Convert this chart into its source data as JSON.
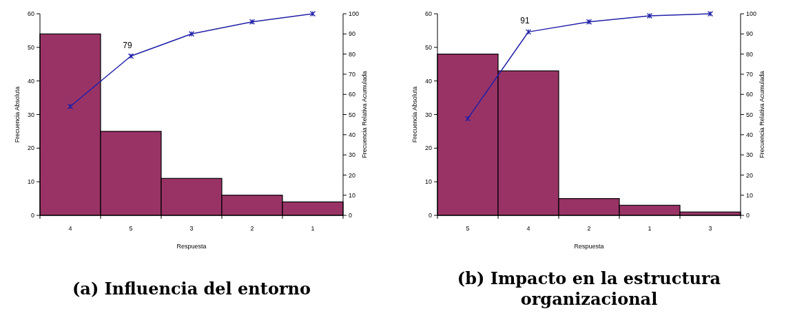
{
  "chart_data": [
    {
      "type": "bar",
      "title": "(a) Influencia del entorno",
      "xlabel": "Respuesta",
      "ylabel": "Frecuencia Absoluta",
      "y2label": "Frecuencia Relativa Acumulada",
      "categories": [
        "4",
        "5",
        "3",
        "2",
        "1"
      ],
      "ylim": [
        0,
        60
      ],
      "yticks": [
        0,
        10,
        20,
        30,
        40,
        50,
        60
      ],
      "y2lim": [
        0,
        100
      ],
      "y2ticks": [
        0,
        10,
        20,
        30,
        40,
        50,
        60,
        70,
        80,
        90,
        100
      ],
      "marker": "cross",
      "series": [
        {
          "color": "#993366",
          "values": [
            54,
            25,
            11,
            6,
            4
          ]
        },
        {
          "type": "line",
          "axis": "y2",
          "color": "#1f1fa8",
          "values": [
            54,
            79,
            90,
            96,
            100
          ]
        }
      ],
      "annotations": [
        "79"
      ]
    },
    {
      "type": "bar",
      "title": "(b) Impacto en la estructura organizacional",
      "xlabel": "Respuesta",
      "ylabel": "Frecuencia Absoluta",
      "y2label": "Frecuencia Relativa Acumulada",
      "categories": [
        "5",
        "4",
        "2",
        "1",
        "3"
      ],
      "ylim": [
        0,
        60
      ],
      "yticks": [
        0,
        10,
        20,
        30,
        40,
        50,
        60
      ],
      "y2lim": [
        0,
        100
      ],
      "y2ticks": [
        0,
        10,
        20,
        30,
        40,
        50,
        60,
        70,
        80,
        90,
        100
      ],
      "marker": "cross",
      "series": [
        {
          "color": "#993366",
          "values": [
            48,
            43,
            5,
            3,
            1
          ]
        },
        {
          "type": "line",
          "axis": "y2",
          "color": "#1f1fa8",
          "values": [
            48,
            91,
            96,
            99,
            100
          ]
        }
      ],
      "annotations": [
        "91"
      ]
    }
  ]
}
